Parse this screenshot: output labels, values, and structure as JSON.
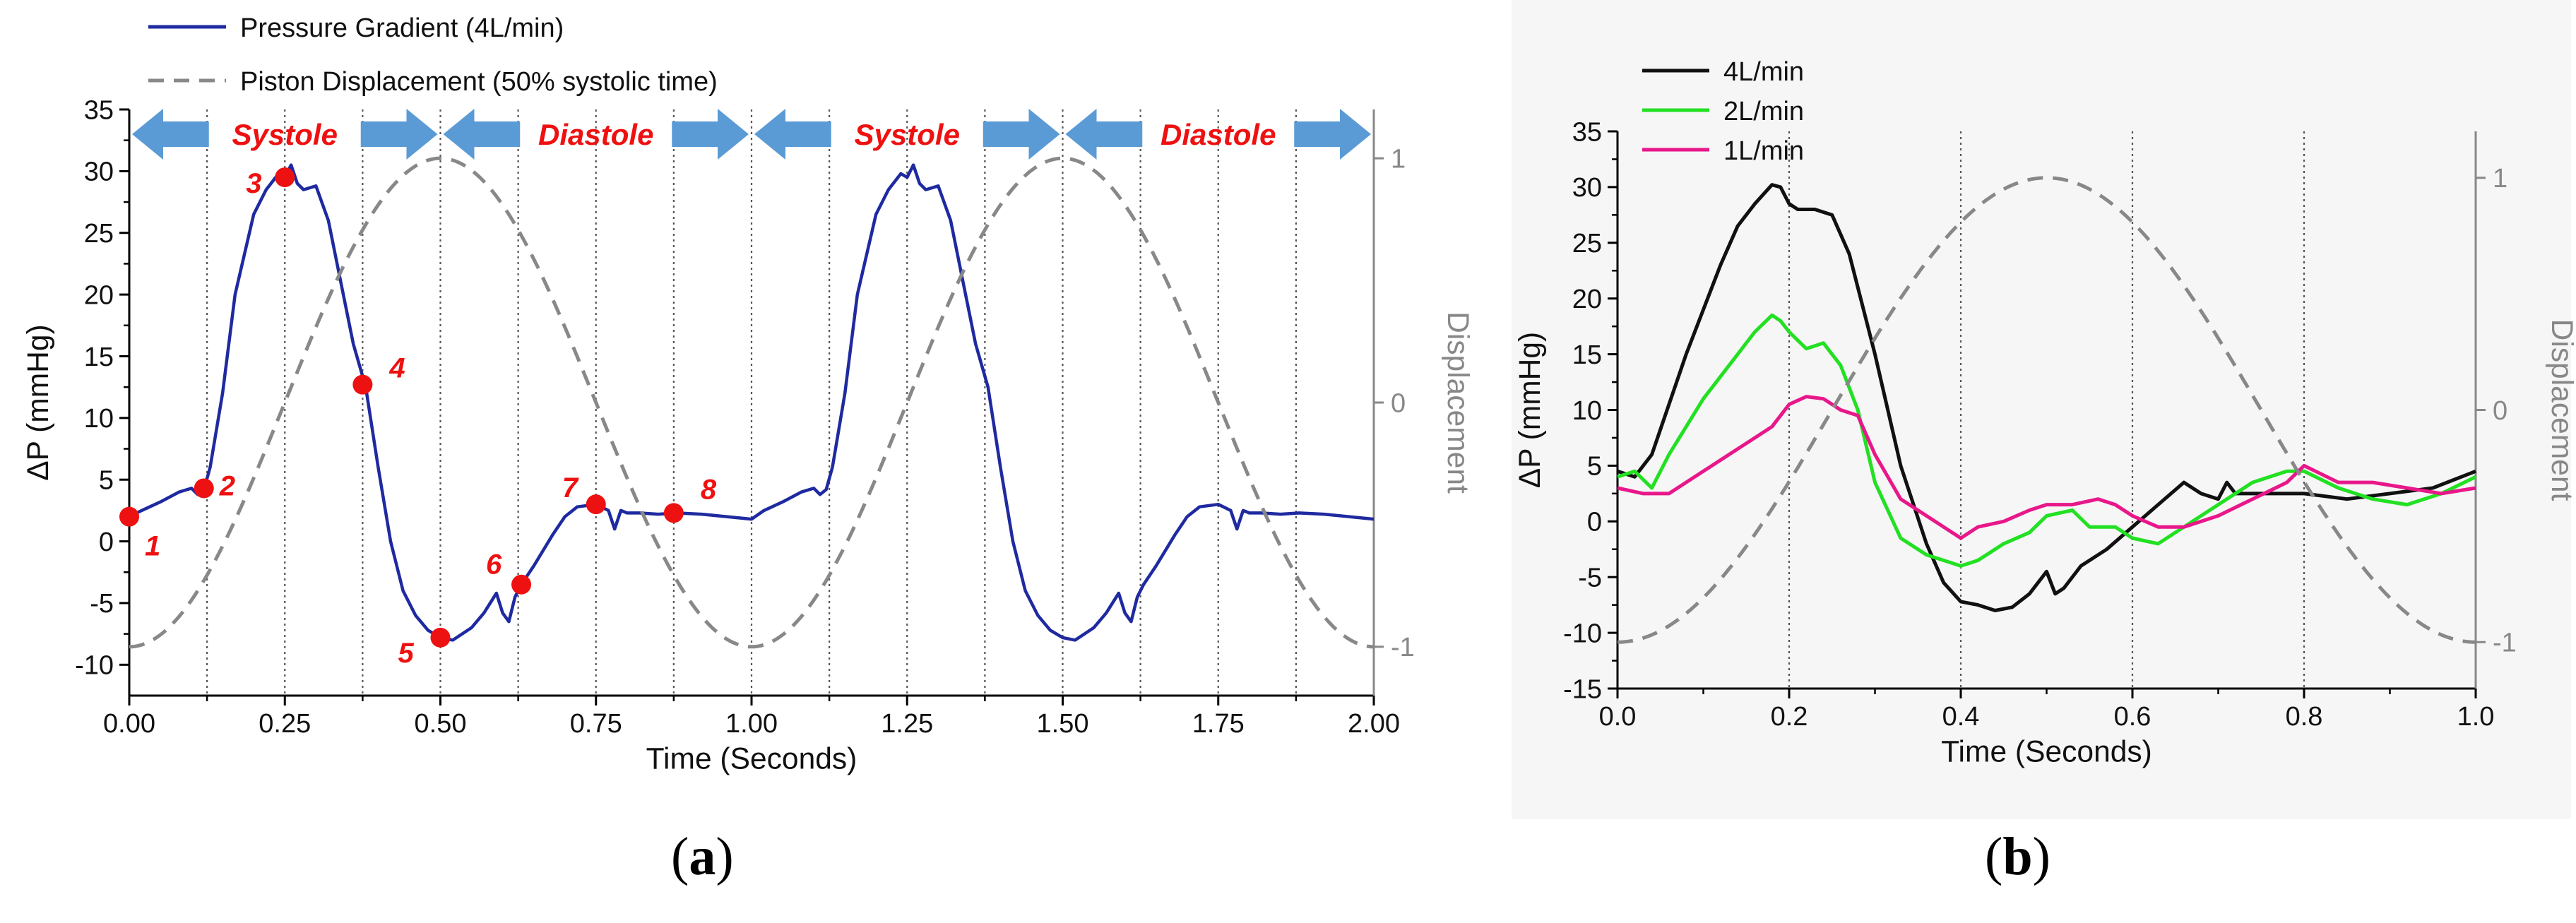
{
  "captions": {
    "a": "a",
    "b": "b"
  },
  "colors": {
    "pressure": "#1f2aa0",
    "displacement": "#888888",
    "black_series": "#111111",
    "green_series": "#22e022",
    "pink_series": "#e8178a",
    "phase_arrow": "#5b9bd5",
    "phase_text": "#ee1111",
    "marker": "#ee1111"
  },
  "chart_data": [
    {
      "id": "a",
      "type": "line",
      "xlabel": "Time (Seconds)",
      "ylabel": "ΔP (mmHg)",
      "y2label": "Displacement",
      "xlim": [
        0,
        2.0
      ],
      "ylim": [
        -12.5,
        35
      ],
      "y2lim": [
        -1.2,
        1.2
      ],
      "xticks": [
        0.0,
        0.25,
        0.5,
        0.75,
        1.0,
        1.25,
        1.5,
        1.75,
        2.0
      ],
      "xtick_labels": [
        "0.00",
        "0.25",
        "0.50",
        "0.75",
        "1.00",
        "1.25",
        "1.50",
        "1.75",
        "2.00"
      ],
      "yticks": [
        -10,
        -5,
        0,
        5,
        10,
        15,
        20,
        25,
        30,
        35
      ],
      "ytick_labels": [
        "-10",
        "-5",
        "0",
        "5",
        "10",
        "15",
        "20",
        "25",
        "30",
        "35"
      ],
      "y2ticks": [
        -1,
        0,
        1
      ],
      "y2tick_labels": [
        "-1",
        "0",
        "1"
      ],
      "vlines": [
        0.125,
        0.25,
        0.375,
        0.5,
        0.625,
        0.75,
        0.875,
        1.0,
        1.125,
        1.25,
        1.375,
        1.5,
        1.625,
        1.75,
        1.875
      ],
      "legend": [
        {
          "label": "Pressure Gradient (4L/min)",
          "style": "solid",
          "series": "pressure"
        },
        {
          "label": "Piston Displacement (50% systolic time)",
          "style": "dashed",
          "series": "displacement"
        }
      ],
      "phases": [
        {
          "label": "Systole",
          "start": 0.0,
          "end": 0.5
        },
        {
          "label": "Diastole",
          "start": 0.5,
          "end": 1.0
        },
        {
          "label": "Systole",
          "start": 1.0,
          "end": 1.5
        },
        {
          "label": "Diastole",
          "start": 1.5,
          "end": 2.0
        }
      ],
      "series": [
        {
          "name": "Pressure Gradient (4L/min)",
          "axis": "left",
          "x": [
            0.0,
            0.02,
            0.05,
            0.08,
            0.1,
            0.11,
            0.12,
            0.13,
            0.15,
            0.17,
            0.2,
            0.22,
            0.24,
            0.25,
            0.26,
            0.27,
            0.28,
            0.3,
            0.32,
            0.34,
            0.36,
            0.38,
            0.4,
            0.42,
            0.44,
            0.46,
            0.48,
            0.5,
            0.52,
            0.55,
            0.57,
            0.59,
            0.6,
            0.61,
            0.62,
            0.63,
            0.65,
            0.68,
            0.7,
            0.72,
            0.75,
            0.77,
            0.78,
            0.79,
            0.8,
            0.82,
            0.85,
            0.88,
            0.92,
            0.96,
            1.0,
            1.02,
            1.05,
            1.08,
            1.1,
            1.11,
            1.12,
            1.13,
            1.15,
            1.17,
            1.2,
            1.22,
            1.24,
            1.25,
            1.26,
            1.27,
            1.28,
            1.3,
            1.32,
            1.34,
            1.36,
            1.38,
            1.4,
            1.42,
            1.44,
            1.46,
            1.48,
            1.5,
            1.52,
            1.55,
            1.57,
            1.59,
            1.6,
            1.61,
            1.62,
            1.63,
            1.65,
            1.68,
            1.7,
            1.72,
            1.75,
            1.77,
            1.78,
            1.79,
            1.8,
            1.82,
            1.85,
            1.88,
            1.92,
            1.96,
            2.0
          ],
          "y": [
            2.0,
            2.5,
            3.2,
            4.0,
            4.3,
            3.8,
            4.2,
            6.0,
            12.0,
            20.0,
            26.5,
            28.5,
            29.8,
            29.5,
            30.5,
            29.0,
            28.5,
            28.8,
            26.0,
            21.0,
            16.0,
            12.5,
            6.0,
            0.0,
            -4.0,
            -6.0,
            -7.2,
            -7.8,
            -8.0,
            -7.0,
            -5.8,
            -4.2,
            -5.8,
            -6.5,
            -4.5,
            -3.5,
            -2.0,
            0.5,
            2.0,
            2.8,
            3.0,
            2.5,
            1.0,
            2.5,
            2.3,
            2.3,
            2.2,
            2.3,
            2.2,
            2.0,
            1.8,
            2.5,
            3.2,
            4.0,
            4.3,
            3.8,
            4.2,
            6.0,
            12.0,
            20.0,
            26.5,
            28.5,
            29.8,
            29.5,
            30.5,
            29.0,
            28.5,
            28.8,
            26.0,
            21.0,
            16.0,
            12.5,
            6.0,
            0.0,
            -4.0,
            -6.0,
            -7.2,
            -7.8,
            -8.0,
            -7.0,
            -5.8,
            -4.2,
            -5.8,
            -6.5,
            -4.5,
            -3.5,
            -2.0,
            0.5,
            2.0,
            2.8,
            3.0,
            2.5,
            1.0,
            2.5,
            2.3,
            2.3,
            2.2,
            2.3,
            2.2,
            2.0,
            1.8
          ]
        },
        {
          "name": "Piston Displacement (50% systolic time)",
          "axis": "right",
          "function": "sinusoid",
          "x_min": 1.0,
          "period": 1.0,
          "peak_time": 0.5,
          "min": -1,
          "max": 1
        }
      ],
      "markers": [
        {
          "label": "1",
          "x": 0.0,
          "y": 2.0
        },
        {
          "label": "2",
          "x": 0.12,
          "y": 4.3
        },
        {
          "label": "3",
          "x": 0.25,
          "y": 29.5
        },
        {
          "label": "4",
          "x": 0.375,
          "y": 12.7
        },
        {
          "label": "5",
          "x": 0.5,
          "y": -7.8
        },
        {
          "label": "6",
          "x": 0.63,
          "y": -3.5
        },
        {
          "label": "7",
          "x": 0.75,
          "y": 3.0
        },
        {
          "label": "8",
          "x": 0.875,
          "y": 2.3
        }
      ]
    },
    {
      "id": "b",
      "type": "line",
      "xlabel": "Time (Seconds)",
      "ylabel": "ΔP (mmHg)",
      "y2label": "Displacement",
      "xlim": [
        0,
        1.0
      ],
      "ylim": [
        -15,
        35
      ],
      "y2lim": [
        -1.2,
        1.2
      ],
      "xticks": [
        0.0,
        0.2,
        0.4,
        0.6,
        0.8,
        1.0
      ],
      "xtick_labels": [
        "0.0",
        "0.2",
        "0.4",
        "0.6",
        "0.8",
        "1.0"
      ],
      "yticks": [
        -15,
        -10,
        -5,
        0,
        5,
        10,
        15,
        20,
        25,
        30,
        35
      ],
      "ytick_labels": [
        "-15",
        "-10",
        "-5",
        "0",
        "5",
        "10",
        "15",
        "20",
        "25",
        "30",
        "35"
      ],
      "y2ticks": [
        -1,
        0,
        1
      ],
      "y2tick_labels": [
        "-1",
        "0",
        "1"
      ],
      "vlines": [
        0.2,
        0.4,
        0.6,
        0.8
      ],
      "legend": [
        {
          "label": "4L/min",
          "series": "4L/min"
        },
        {
          "label": "2L/min",
          "series": "2L/min"
        },
        {
          "label": "1L/min",
          "series": "1L/min"
        }
      ],
      "series": [
        {
          "name": "4L/min",
          "axis": "left",
          "x": [
            0.0,
            0.02,
            0.04,
            0.06,
            0.08,
            0.1,
            0.12,
            0.14,
            0.16,
            0.18,
            0.19,
            0.2,
            0.21,
            0.23,
            0.25,
            0.27,
            0.3,
            0.33,
            0.36,
            0.38,
            0.4,
            0.42,
            0.44,
            0.46,
            0.48,
            0.5,
            0.51,
            0.52,
            0.54,
            0.57,
            0.6,
            0.63,
            0.66,
            0.68,
            0.7,
            0.71,
            0.72,
            0.73,
            0.76,
            0.8,
            0.85,
            0.9,
            0.95,
            1.0
          ],
          "y": [
            4.5,
            4.0,
            6.0,
            10.5,
            15.0,
            19.0,
            23.0,
            26.5,
            28.5,
            30.2,
            30.0,
            28.5,
            28.0,
            28.0,
            27.5,
            24.0,
            15.0,
            5.0,
            -2.0,
            -5.5,
            -7.2,
            -7.5,
            -8.0,
            -7.7,
            -6.5,
            -4.5,
            -6.5,
            -6.0,
            -4.0,
            -2.5,
            -0.5,
            1.5,
            3.5,
            2.5,
            2.0,
            3.5,
            2.5,
            2.5,
            2.5,
            2.5,
            2.0,
            2.5,
            3.0,
            4.5
          ]
        },
        {
          "name": "2L/min",
          "axis": "left",
          "x": [
            0.0,
            0.02,
            0.04,
            0.06,
            0.08,
            0.1,
            0.12,
            0.14,
            0.16,
            0.18,
            0.19,
            0.2,
            0.22,
            0.24,
            0.26,
            0.28,
            0.3,
            0.33,
            0.36,
            0.38,
            0.4,
            0.42,
            0.45,
            0.48,
            0.5,
            0.53,
            0.55,
            0.58,
            0.6,
            0.63,
            0.66,
            0.7,
            0.74,
            0.78,
            0.8,
            0.84,
            0.88,
            0.92,
            0.96,
            1.0
          ],
          "y": [
            4.0,
            4.5,
            3.0,
            6.0,
            8.5,
            11.0,
            13.0,
            15.0,
            17.0,
            18.5,
            18.0,
            17.0,
            15.5,
            16.0,
            14.0,
            10.0,
            3.5,
            -1.5,
            -3.0,
            -3.5,
            -4.0,
            -3.5,
            -2.0,
            -1.0,
            0.5,
            1.0,
            -0.5,
            -0.5,
            -1.5,
            -2.0,
            -0.5,
            1.5,
            3.5,
            4.5,
            4.5,
            3.0,
            2.0,
            1.5,
            2.5,
            4.0
          ]
        },
        {
          "name": "1L/min",
          "axis": "left",
          "x": [
            0.0,
            0.03,
            0.06,
            0.09,
            0.12,
            0.15,
            0.18,
            0.2,
            0.22,
            0.24,
            0.26,
            0.28,
            0.3,
            0.33,
            0.36,
            0.38,
            0.4,
            0.42,
            0.45,
            0.48,
            0.5,
            0.53,
            0.56,
            0.58,
            0.6,
            0.63,
            0.66,
            0.7,
            0.74,
            0.78,
            0.8,
            0.84,
            0.88,
            0.92,
            0.96,
            1.0
          ],
          "y": [
            3.0,
            2.5,
            2.5,
            4.0,
            5.5,
            7.0,
            8.5,
            10.5,
            11.2,
            11.0,
            10.0,
            9.5,
            6.0,
            2.0,
            0.5,
            -0.5,
            -1.5,
            -0.5,
            0.0,
            1.0,
            1.5,
            1.5,
            2.0,
            1.5,
            0.5,
            -0.5,
            -0.5,
            0.5,
            2.0,
            3.5,
            5.0,
            3.5,
            3.5,
            3.0,
            2.5,
            3.0
          ]
        },
        {
          "name": "Displacement",
          "axis": "right",
          "function": "sinusoid",
          "x_min": 0.0,
          "period": 1.0,
          "peak_time": 0.5,
          "min": -1,
          "max": 1
        }
      ]
    }
  ]
}
